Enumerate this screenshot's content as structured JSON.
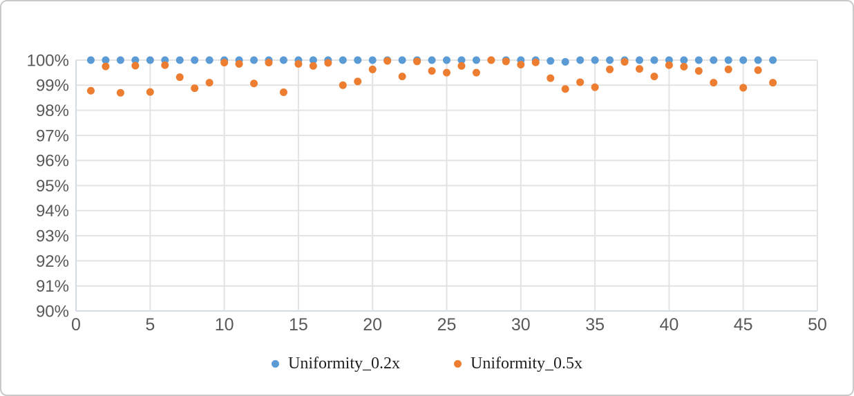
{
  "chart_data": {
    "type": "scatter",
    "title": "",
    "xlabel": "",
    "ylabel": "",
    "xlim": [
      0,
      50
    ],
    "ylim": [
      90,
      100
    ],
    "x_ticks": [
      0,
      5,
      10,
      15,
      20,
      25,
      30,
      35,
      40,
      45,
      50
    ],
    "x_tick_labels": [
      "0",
      "5",
      "10",
      "15",
      "20",
      "25",
      "30",
      "35",
      "40",
      "45",
      "50"
    ],
    "y_ticks": [
      90,
      91,
      92,
      93,
      94,
      95,
      96,
      97,
      98,
      99,
      100
    ],
    "y_tick_labels": [
      "90%",
      "91%",
      "92%",
      "93%",
      "94%",
      "95%",
      "96%",
      "97%",
      "98%",
      "99%",
      "100%"
    ],
    "grid": {
      "horizontal": true,
      "vertical": true
    },
    "legend_position": "bottom-center",
    "colors": {
      "axis_label": "#595959",
      "gridline": "#e3e3e3",
      "axis_line": "#d4dbe6",
      "legend_text": "#1f1f1f"
    },
    "series": [
      {
        "name": "Uniformity_0.2x",
        "color": "#5B9BD5",
        "marker": "circle",
        "points": [
          [
            1,
            100
          ],
          [
            2,
            100
          ],
          [
            3,
            100
          ],
          [
            4,
            100
          ],
          [
            5,
            100
          ],
          [
            6,
            100
          ],
          [
            7,
            100
          ],
          [
            8,
            100
          ],
          [
            9,
            100
          ],
          [
            10,
            100
          ],
          [
            11,
            100
          ],
          [
            12,
            100
          ],
          [
            13,
            100
          ],
          [
            14,
            100
          ],
          [
            15,
            100
          ],
          [
            16,
            100
          ],
          [
            17,
            100
          ],
          [
            18,
            100
          ],
          [
            19,
            100
          ],
          [
            20,
            100
          ],
          [
            21,
            100
          ],
          [
            22,
            100
          ],
          [
            23,
            100
          ],
          [
            24,
            100
          ],
          [
            25,
            100
          ],
          [
            26,
            100
          ],
          [
            27,
            100
          ],
          [
            28,
            100
          ],
          [
            29,
            100
          ],
          [
            30,
            100
          ],
          [
            31,
            100
          ],
          [
            32,
            99.97
          ],
          [
            33,
            99.93
          ],
          [
            34,
            100
          ],
          [
            35,
            100
          ],
          [
            36,
            100
          ],
          [
            37,
            100
          ],
          [
            38,
            100
          ],
          [
            39,
            100
          ],
          [
            40,
            100
          ],
          [
            41,
            100
          ],
          [
            42,
            100
          ],
          [
            43,
            100
          ],
          [
            44,
            100
          ],
          [
            45,
            100
          ],
          [
            46,
            100
          ],
          [
            47,
            100
          ]
        ]
      },
      {
        "name": "Uniformity_0.5x",
        "color": "#ED7D31",
        "marker": "circle",
        "points": [
          [
            1,
            98.78
          ],
          [
            2,
            99.75
          ],
          [
            3,
            98.7
          ],
          [
            4,
            99.78
          ],
          [
            5,
            98.73
          ],
          [
            6,
            99.8
          ],
          [
            7,
            99.32
          ],
          [
            8,
            98.88
          ],
          [
            9,
            99.1
          ],
          [
            10,
            99.9
          ],
          [
            11,
            99.85
          ],
          [
            12,
            99.07
          ],
          [
            13,
            99.9
          ],
          [
            14,
            98.72
          ],
          [
            15,
            99.85
          ],
          [
            16,
            99.77
          ],
          [
            17,
            99.89
          ],
          [
            18,
            99.0
          ],
          [
            19,
            99.15
          ],
          [
            20,
            99.63
          ],
          [
            21,
            99.97
          ],
          [
            22,
            99.35
          ],
          [
            23,
            99.95
          ],
          [
            24,
            99.57
          ],
          [
            25,
            99.5
          ],
          [
            26,
            99.77
          ],
          [
            27,
            99.5
          ],
          [
            28,
            100
          ],
          [
            29,
            99.95
          ],
          [
            30,
            99.82
          ],
          [
            31,
            99.91
          ],
          [
            32,
            99.28
          ],
          [
            33,
            98.85
          ],
          [
            34,
            99.12
          ],
          [
            35,
            98.92
          ],
          [
            36,
            99.63
          ],
          [
            37,
            99.93
          ],
          [
            38,
            99.65
          ],
          [
            39,
            99.35
          ],
          [
            40,
            99.8
          ],
          [
            41,
            99.74
          ],
          [
            42,
            99.57
          ],
          [
            43,
            99.1
          ],
          [
            44,
            99.63
          ],
          [
            45,
            98.9
          ],
          [
            46,
            99.6
          ],
          [
            47,
            99.1
          ]
        ]
      }
    ]
  }
}
